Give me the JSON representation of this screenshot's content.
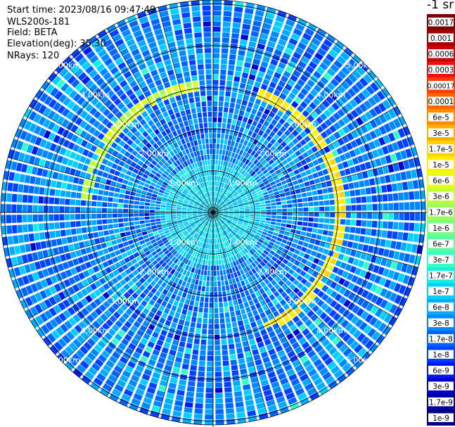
{
  "header": {
    "start_time": "Start time: 2023/08/16 09:47:49",
    "instrument": "WLS200s-181",
    "field": "Field: BETA",
    "elevation": "Elevation(deg): 35.30",
    "nrays": "NRays: 120"
  },
  "colorbar": {
    "unit_label": "-1 sr",
    "labels": [
      "0.0017",
      "0.001",
      "0.0006",
      "0.0003",
      "0.00017",
      "0.0001",
      "6e-5",
      "3e-5",
      "1.7e-5",
      "1e-5",
      "6e-6",
      "3e-6",
      "1.7e-6",
      "1e-6",
      "6e-7",
      "3e-7",
      "1.7e-7",
      "1e-7",
      "6e-8",
      "3e-8",
      "1.7e-8",
      "1e-8",
      "6e-9",
      "3e-9",
      "1.7e-9",
      "1e-9"
    ],
    "colors": [
      "#800000",
      "#a50000",
      "#cc0000",
      "#f01010",
      "#ff3c00",
      "#ff6400",
      "#ff8c00",
      "#ffb000",
      "#ffd400",
      "#fff000",
      "#e4ff12",
      "#c0ff36",
      "#9cff5a",
      "#78ff7e",
      "#5affa0",
      "#36ffc4",
      "#12f0e4",
      "#00d0ff",
      "#00acff",
      "#0088ff",
      "#0064ff",
      "#0040ff",
      "#0018f0",
      "#0000cc",
      "#0000a0",
      "#000080"
    ]
  },
  "chart_data": {
    "type": "heatmap",
    "projection": "polar PPI",
    "nrays": 120,
    "elevation_deg": 35.3,
    "ring_labels": [
      "1.00km",
      "2.00km",
      "3.00km",
      "4.00km",
      "5.00km"
    ],
    "ring_ranges_km": [
      1,
      2,
      3,
      4,
      5
    ],
    "max_range_km": 5.1,
    "colorscale": "log",
    "color_range": [
      1e-09,
      0.0017
    ],
    "background_level": 3e-08,
    "features": [
      {
        "description_level": 1e-05,
        "range_km": 3.05,
        "azimuth_from_deg": 20,
        "azimuth_to_deg": 155
      },
      {
        "description_level": 3e-06,
        "range_km": 3.05,
        "azimuth_from_deg": 275,
        "azimuth_to_deg": 355
      }
    ]
  }
}
